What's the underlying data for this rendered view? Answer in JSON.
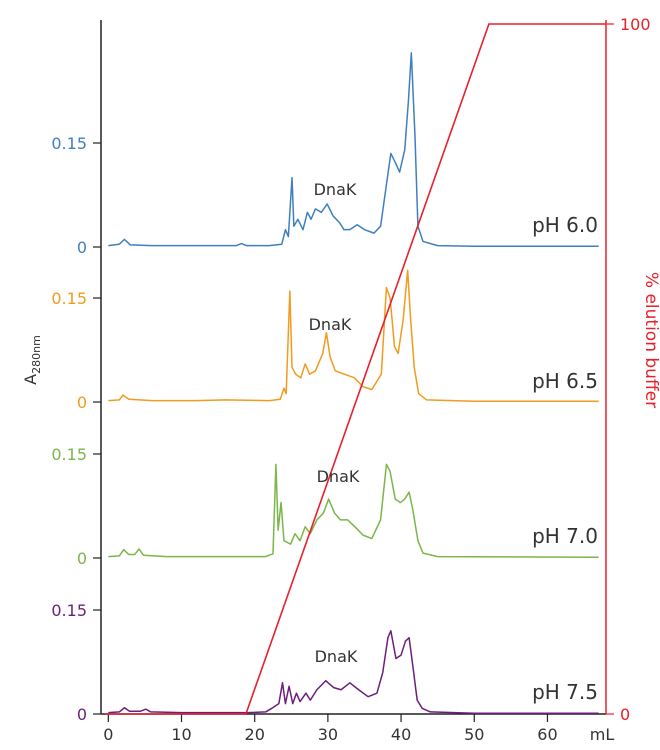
{
  "chart_data": {
    "type": "line",
    "xlabel": "mL",
    "ylabel_left": "A",
    "ylabel_left_sub": "280nm",
    "ylabel_right": "% elution buffer",
    "xlim": [
      -1,
      68
    ],
    "x_ticks": [
      0,
      10,
      20,
      30,
      40,
      50,
      60
    ],
    "right_axis": {
      "ylim": [
        0,
        100
      ],
      "ticks": [
        0,
        100
      ],
      "color": "#e8202a"
    },
    "axis_color": "#222222",
    "panels": [
      {
        "name": "pH 6.0",
        "label": "pH 6.0",
        "peak_label": "DnaK",
        "color": "#3f7fc0",
        "tick_labels": [
          "0",
          "0.15"
        ],
        "points": [
          [
            0,
            0.002
          ],
          [
            1.5,
            0.004
          ],
          [
            2.2,
            0.011
          ],
          [
            3,
            0.003
          ],
          [
            6,
            0.002
          ],
          [
            12,
            0.002
          ],
          [
            17.5,
            0.002
          ],
          [
            18.2,
            0.005
          ],
          [
            18.9,
            0.002
          ],
          [
            22,
            0.002
          ],
          [
            23.7,
            0.004
          ],
          [
            24.2,
            0.025
          ],
          [
            24.6,
            0.015
          ],
          [
            25.1,
            0.1
          ],
          [
            25.35,
            0.03
          ],
          [
            25.9,
            0.04
          ],
          [
            26.6,
            0.025
          ],
          [
            27.2,
            0.05
          ],
          [
            27.7,
            0.04
          ],
          [
            28.3,
            0.055
          ],
          [
            29.1,
            0.05
          ],
          [
            29.9,
            0.062
          ],
          [
            30.7,
            0.045
          ],
          [
            31.6,
            0.035
          ],
          [
            32.2,
            0.025
          ],
          [
            33,
            0.025
          ],
          [
            34,
            0.032
          ],
          [
            35,
            0.025
          ],
          [
            36.3,
            0.02
          ],
          [
            37.2,
            0.03
          ],
          [
            38,
            0.09
          ],
          [
            38.6,
            0.135
          ],
          [
            39.3,
            0.12
          ],
          [
            39.8,
            0.108
          ],
          [
            40.5,
            0.14
          ],
          [
            41,
            0.21
          ],
          [
            41.4,
            0.28
          ],
          [
            41.9,
            0.16
          ],
          [
            42.3,
            0.03
          ],
          [
            43,
            0.008
          ],
          [
            45,
            0.002
          ],
          [
            50,
            0.001
          ],
          [
            58,
            0.001
          ],
          [
            67,
            0.001
          ]
        ]
      },
      {
        "name": "pH 6.5",
        "label": "pH 6.5",
        "peak_label": "DnaK",
        "color": "#f39a1f",
        "tick_labels": [
          "0",
          "0.15"
        ],
        "points": [
          [
            0,
            0.002
          ],
          [
            1.5,
            0.003
          ],
          [
            2,
            0.01
          ],
          [
            2.8,
            0.004
          ],
          [
            6,
            0.002
          ],
          [
            12,
            0.002
          ],
          [
            16,
            0.003
          ],
          [
            22,
            0.002
          ],
          [
            23.5,
            0.004
          ],
          [
            24,
            0.02
          ],
          [
            24.3,
            0.012
          ],
          [
            24.8,
            0.16
          ],
          [
            25.1,
            0.05
          ],
          [
            25.6,
            0.04
          ],
          [
            26.3,
            0.035
          ],
          [
            26.9,
            0.055
          ],
          [
            27.5,
            0.04
          ],
          [
            28.3,
            0.045
          ],
          [
            29.3,
            0.07
          ],
          [
            29.8,
            0.1
          ],
          [
            30.3,
            0.065
          ],
          [
            31,
            0.045
          ],
          [
            32.3,
            0.04
          ],
          [
            33.6,
            0.035
          ],
          [
            34.8,
            0.022
          ],
          [
            36,
            0.018
          ],
          [
            37.3,
            0.04
          ],
          [
            38,
            0.165
          ],
          [
            38.5,
            0.15
          ],
          [
            39.1,
            0.08
          ],
          [
            39.6,
            0.07
          ],
          [
            40.3,
            0.12
          ],
          [
            40.9,
            0.19
          ],
          [
            41.3,
            0.12
          ],
          [
            41.8,
            0.05
          ],
          [
            42.4,
            0.012
          ],
          [
            43.5,
            0.003
          ],
          [
            50,
            0.001
          ],
          [
            67,
            0.001
          ]
        ]
      },
      {
        "name": "pH 7.0",
        "label": "pH 7.0",
        "peak_label": "DnaK",
        "color": "#7ab648",
        "tick_labels": [
          "0",
          "0.15"
        ],
        "points": [
          [
            0,
            0.002
          ],
          [
            1.5,
            0.003
          ],
          [
            2.1,
            0.012
          ],
          [
            2.8,
            0.005
          ],
          [
            3.6,
            0.005
          ],
          [
            4.2,
            0.013
          ],
          [
            4.8,
            0.004
          ],
          [
            8,
            0.002
          ],
          [
            15,
            0.002
          ],
          [
            21.5,
            0.002
          ],
          [
            22.5,
            0.006
          ],
          [
            22.9,
            0.135
          ],
          [
            23.2,
            0.04
          ],
          [
            23.6,
            0.08
          ],
          [
            24,
            0.025
          ],
          [
            24.9,
            0.02
          ],
          [
            25.5,
            0.035
          ],
          [
            26.2,
            0.025
          ],
          [
            26.9,
            0.045
          ],
          [
            27.6,
            0.035
          ],
          [
            28.5,
            0.055
          ],
          [
            29.4,
            0.065
          ],
          [
            30.1,
            0.085
          ],
          [
            30.9,
            0.065
          ],
          [
            31.7,
            0.055
          ],
          [
            32.7,
            0.055
          ],
          [
            33.7,
            0.045
          ],
          [
            34.8,
            0.033
          ],
          [
            36,
            0.028
          ],
          [
            37.2,
            0.055
          ],
          [
            38,
            0.135
          ],
          [
            38.5,
            0.125
          ],
          [
            39.2,
            0.085
          ],
          [
            39.9,
            0.08
          ],
          [
            40.5,
            0.085
          ],
          [
            41.1,
            0.095
          ],
          [
            41.6,
            0.07
          ],
          [
            42.3,
            0.025
          ],
          [
            43,
            0.007
          ],
          [
            45,
            0.002
          ],
          [
            67,
            0.001
          ]
        ]
      },
      {
        "name": "pH 7.5",
        "label": "pH 7.5",
        "peak_label": "DnaK",
        "color": "#6b1f7b",
        "tick_labels": [
          "0",
          "0.15"
        ],
        "points": [
          [
            0,
            0.002
          ],
          [
            1.5,
            0.003
          ],
          [
            2.2,
            0.009
          ],
          [
            2.9,
            0.004
          ],
          [
            4.4,
            0.004
          ],
          [
            5.1,
            0.007
          ],
          [
            5.8,
            0.003
          ],
          [
            10,
            0.002
          ],
          [
            19,
            0.002
          ],
          [
            21.5,
            0.003
          ],
          [
            22.3,
            0.008
          ],
          [
            23.3,
            0.015
          ],
          [
            23.8,
            0.045
          ],
          [
            24.2,
            0.015
          ],
          [
            24.7,
            0.04
          ],
          [
            25.2,
            0.015
          ],
          [
            25.7,
            0.03
          ],
          [
            26.2,
            0.018
          ],
          [
            27,
            0.03
          ],
          [
            27.6,
            0.02
          ],
          [
            28.5,
            0.035
          ],
          [
            29.7,
            0.048
          ],
          [
            30.8,
            0.038
          ],
          [
            31.8,
            0.035
          ],
          [
            33,
            0.045
          ],
          [
            34.2,
            0.035
          ],
          [
            35.5,
            0.025
          ],
          [
            36.7,
            0.03
          ],
          [
            37.5,
            0.06
          ],
          [
            38.2,
            0.11
          ],
          [
            38.6,
            0.12
          ],
          [
            39.3,
            0.08
          ],
          [
            40,
            0.085
          ],
          [
            40.6,
            0.105
          ],
          [
            41.1,
            0.11
          ],
          [
            41.6,
            0.07
          ],
          [
            42.2,
            0.02
          ],
          [
            42.9,
            0.008
          ],
          [
            44,
            0.003
          ],
          [
            50,
            0.001
          ],
          [
            67,
            0.001
          ]
        ]
      }
    ],
    "gradient": {
      "name": "% elution buffer",
      "color": "#e8202a",
      "points": [
        [
          -0.5,
          0
        ],
        [
          18.8,
          0
        ],
        [
          52,
          100
        ],
        [
          68,
          100
        ]
      ]
    }
  }
}
